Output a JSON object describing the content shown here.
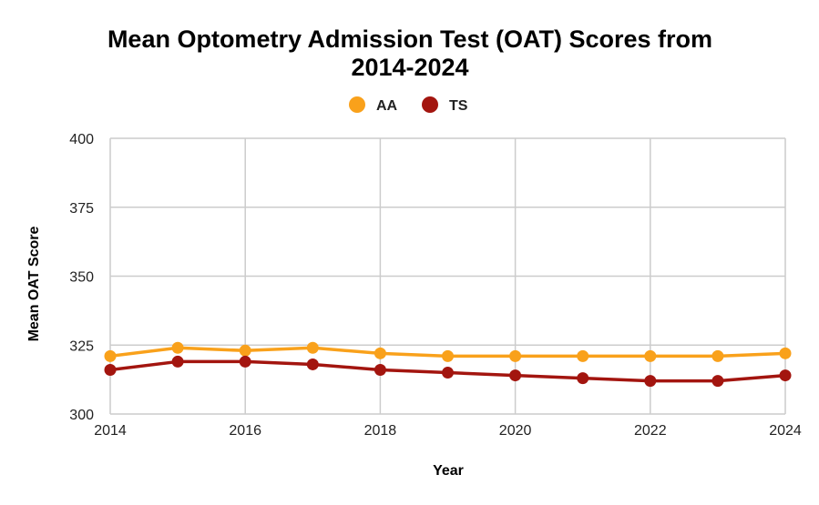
{
  "chart_data": {
    "type": "line",
    "title_line1": "Mean Optometry Admission Test (OAT) Scores from",
    "title_line2": "2014-2024",
    "xlabel": "Year",
    "ylabel": "Mean OAT Score",
    "x": [
      2014,
      2015,
      2016,
      2017,
      2018,
      2019,
      2020,
      2021,
      2022,
      2023,
      2024
    ],
    "xticks": [
      "2014",
      "2016",
      "2018",
      "2020",
      "2022",
      "2024"
    ],
    "yticks": [
      "300",
      "325",
      "350",
      "375",
      "400"
    ],
    "xlim": [
      2014,
      2024
    ],
    "ylim": [
      300,
      400
    ],
    "grid": true,
    "legend_position": "top",
    "series": [
      {
        "name": "AA",
        "color": "#f9a11b",
        "values": [
          321,
          324,
          323,
          324,
          322,
          321,
          321,
          321,
          321,
          321,
          322
        ]
      },
      {
        "name": "TS",
        "color": "#a3150f",
        "values": [
          316,
          319,
          319,
          318,
          316,
          315,
          314,
          313,
          312,
          312,
          314
        ]
      }
    ]
  }
}
